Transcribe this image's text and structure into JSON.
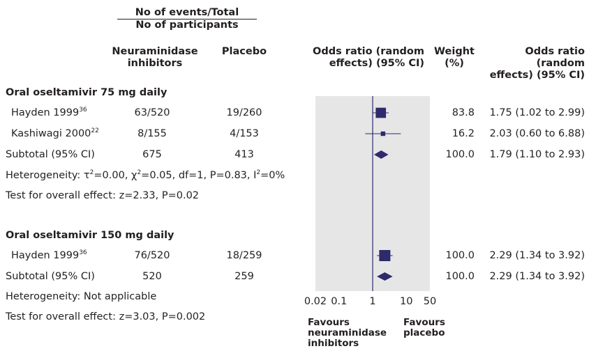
{
  "header": {
    "events_line1": "No of events/Total",
    "events_line2": "No of participants",
    "col_ni_line1": "Neuraminidase",
    "col_ni_line2": "inhibitors",
    "col_placebo": "Placebo",
    "col_or_line1": "Odds ratio (random",
    "col_or_line2": "effects) (95% CI)",
    "col_weight_line1": "Weight",
    "col_weight_line2": "(%)",
    "col_or2_line1": "Odds ratio (random",
    "col_or2_line2": "effects) (95% CI)"
  },
  "sections": [
    {
      "title": "Oral oseltamivir 75 mg daily",
      "studies": [
        {
          "name": "Hayden 1999",
          "ref": "36",
          "ni": "63/520",
          "placebo": "19/260",
          "weight": "83.8",
          "ci_text": "1.75 (1.02 to 2.99)"
        },
        {
          "name": "Kashiwagi 2000",
          "ref": "22",
          "ni": "8/155",
          "placebo": "4/153",
          "weight": "16.2",
          "ci_text": "2.03 (0.60 to 6.88)"
        }
      ],
      "subtotal": {
        "label": "Subtotal (95% CI)",
        "ni": "675",
        "placebo": "413",
        "weight": "100.0",
        "ci_text": "1.79 (1.10 to 2.93)"
      },
      "heterogeneity": {
        "prefix": "Heterogeneity: ",
        "tau": "τ",
        "eq1": "=0.00, ",
        "chi": "χ",
        "eq2": "=0.05, df=1, P=0.83, I",
        "eq3": "=0%",
        "sup": "2"
      },
      "overall": "Test for overall effect: z=2.33, P=0.02"
    },
    {
      "title": "Oral oseltamivir 150 mg daily",
      "studies": [
        {
          "name": "Hayden 1999",
          "ref": "36",
          "ni": "76/520",
          "placebo": "18/259",
          "weight": "100.0",
          "ci_text": "2.29 (1.34 to 3.92)"
        }
      ],
      "subtotal": {
        "label": "Subtotal (95% CI)",
        "ni": "520",
        "placebo": "259",
        "weight": "100.0",
        "ci_text": "2.29 (1.34 to 3.92)"
      },
      "heterogeneity_text": "Heterogeneity: Not applicable",
      "overall": "Test for overall effect: z=3.03, P=0.002"
    }
  ],
  "footer": {
    "favours_left_1": "Favours",
    "favours_left_2": "neuraminidase",
    "favours_left_3": "inhibitors",
    "favours_right_1": "Favours",
    "favours_right_2": "placebo"
  },
  "chart_data": {
    "type": "forest",
    "x_scale": "log",
    "xlim": [
      0.02,
      50
    ],
    "x_ticks": [
      "0.02",
      "0.1",
      "1",
      "10",
      "50"
    ],
    "null_line": 1,
    "colors": {
      "marker": "#2e2a6b",
      "panel": "#e6e6e6",
      "null_line": "#2e2a6b"
    },
    "rows": [
      {
        "label": "Hayden 1999",
        "kind": "study",
        "or": 1.75,
        "lo": 1.02,
        "hi": 2.99,
        "weight": 83.8
      },
      {
        "label": "Kashiwagi 2000",
        "kind": "study",
        "or": 2.03,
        "lo": 0.6,
        "hi": 6.88,
        "weight": 16.2
      },
      {
        "label": "Subtotal (95% CI)",
        "kind": "subtotal",
        "or": 1.79,
        "lo": 1.1,
        "hi": 2.93
      },
      {
        "label": "Hayden 1999",
        "kind": "study",
        "or": 2.29,
        "lo": 1.34,
        "hi": 3.92,
        "weight": 100.0
      },
      {
        "label": "Subtotal (95% CI)",
        "kind": "subtotal",
        "or": 2.29,
        "lo": 1.34,
        "hi": 3.92
      }
    ]
  }
}
